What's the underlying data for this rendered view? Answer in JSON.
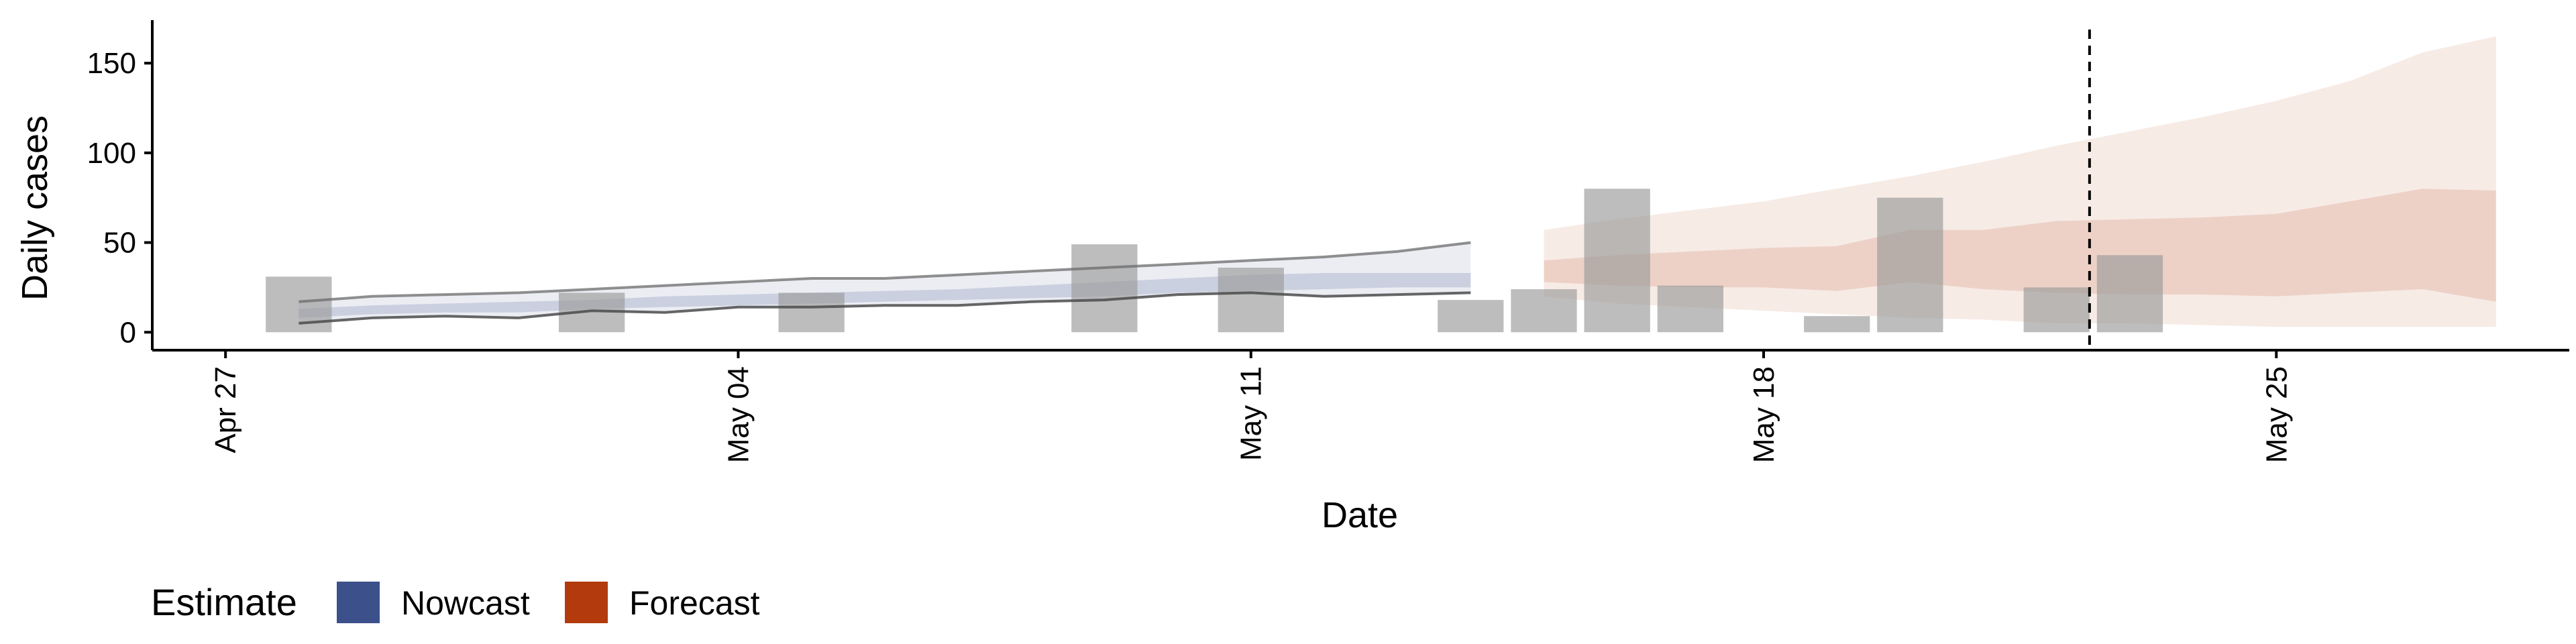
{
  "chart_data": {
    "type": "bar",
    "xlabel": "Date",
    "ylabel": "Daily cases",
    "ylim": [
      -10,
      174
    ],
    "xlim": [
      "2020-04-26",
      "2020-05-29"
    ],
    "y_ticks": [
      0,
      50,
      100,
      150
    ],
    "x_ticks": [
      {
        "date": "2020-04-27",
        "label": "Apr 27"
      },
      {
        "date": "2020-05-04",
        "label": "May 04"
      },
      {
        "date": "2020-05-11",
        "label": "May 11"
      },
      {
        "date": "2020-05-18",
        "label": "May 18"
      },
      {
        "date": "2020-05-25",
        "label": "May 25"
      }
    ],
    "reference_line": {
      "date": "2020-05-22",
      "style": "dashed"
    },
    "reported_cases": [
      {
        "date": "2020-04-28",
        "value": 31
      },
      {
        "date": "2020-05-02",
        "value": 22
      },
      {
        "date": "2020-05-05",
        "value": 22
      },
      {
        "date": "2020-05-09",
        "value": 49
      },
      {
        "date": "2020-05-11",
        "value": 36
      },
      {
        "date": "2020-05-14",
        "value": 18
      },
      {
        "date": "2020-05-15",
        "value": 24
      },
      {
        "date": "2020-05-16",
        "value": 80
      },
      {
        "date": "2020-05-17",
        "value": 26
      },
      {
        "date": "2020-05-19",
        "value": 9
      },
      {
        "date": "2020-05-20",
        "value": 75
      },
      {
        "date": "2020-05-22",
        "value": 25
      },
      {
        "date": "2020-05-23",
        "value": 43
      }
    ],
    "series": [
      {
        "name": "Nowcast",
        "color": "#3C508B",
        "dates": [
          "2020-04-28",
          "2020-04-29",
          "2020-04-30",
          "2020-05-01",
          "2020-05-02",
          "2020-05-03",
          "2020-05-04",
          "2020-05-05",
          "2020-05-06",
          "2020-05-07",
          "2020-05-08",
          "2020-05-09",
          "2020-05-10",
          "2020-05-11",
          "2020-05-12",
          "2020-05-13",
          "2020-05-14"
        ],
        "upper90": [
          17,
          20,
          21,
          22,
          24,
          26,
          28,
          30,
          30,
          32,
          34,
          36,
          38,
          40,
          42,
          45,
          50
        ],
        "lower90": [
          5,
          8,
          9,
          8,
          12,
          11,
          14,
          14,
          15,
          15,
          17,
          18,
          21,
          22,
          20,
          21,
          22
        ],
        "upper50": [
          13,
          15,
          16,
          17,
          18,
          20,
          21,
          22,
          23,
          24,
          26,
          28,
          30,
          32,
          33,
          33,
          33
        ],
        "lower50": [
          8,
          10,
          11,
          11,
          13,
          14,
          15,
          16,
          17,
          18,
          19,
          20,
          22,
          23,
          24,
          25,
          25
        ]
      },
      {
        "name": "Forecast",
        "color": "#B33A0C",
        "dates": [
          "2020-05-15",
          "2020-05-16",
          "2020-05-17",
          "2020-05-18",
          "2020-05-19",
          "2020-05-20",
          "2020-05-21",
          "2020-05-22",
          "2020-05-23",
          "2020-05-24",
          "2020-05-25",
          "2020-05-26",
          "2020-05-27",
          "2020-05-28"
        ],
        "upper90": [
          57,
          63,
          68,
          73,
          80,
          87,
          95,
          104,
          112,
          120,
          129,
          140,
          156,
          165
        ],
        "lower90": [
          20,
          16,
          14,
          12,
          10,
          8,
          7,
          5,
          5,
          4,
          3,
          3,
          3,
          3
        ],
        "upper50": [
          40,
          43,
          45,
          47,
          48,
          57,
          57,
          62,
          63,
          64,
          66,
          73,
          80,
          79
        ],
        "lower50": [
          28,
          26,
          25,
          25,
          23,
          28,
          24,
          22,
          21,
          21,
          20,
          22,
          24,
          17
        ]
      }
    ],
    "legend": {
      "title": "Estimate",
      "placement": "bottom-left",
      "items": [
        {
          "label": "Nowcast",
          "color": "#3C508B"
        },
        {
          "label": "Forecast",
          "color": "#B33A0C"
        }
      ]
    },
    "grid": false
  }
}
